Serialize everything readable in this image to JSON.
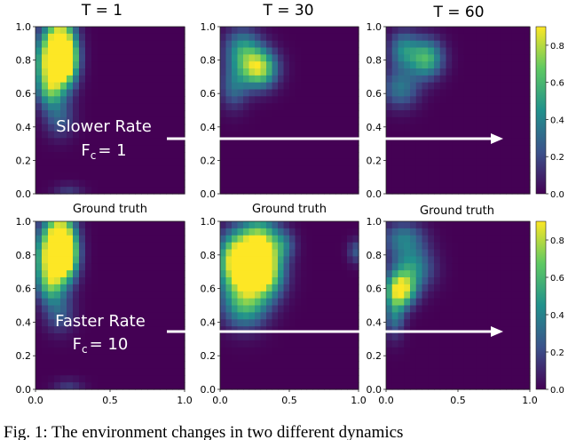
{
  "chart_data": {
    "type": "heatmap",
    "column_titles": [
      "T = 1",
      "T = 30",
      "T = 60"
    ],
    "row_subtitle": "Ground truth",
    "x_ticks": [
      "0.0",
      "0.5",
      "1.0"
    ],
    "y_ticks": [
      "0.0",
      "0.2",
      "0.4",
      "0.6",
      "0.8",
      "1.0"
    ],
    "xlim": [
      0,
      1
    ],
    "ylim": [
      0,
      1
    ],
    "colorbar_ticks": [
      "0.0",
      "0.2",
      "0.4",
      "0.6",
      "0.8"
    ],
    "colorbar_range": [
      0,
      0.9
    ],
    "colormap": [
      "#440154",
      "#3b528b",
      "#21918c",
      "#5ec962",
      "#fde725"
    ],
    "background_color": "#440154",
    "rows": [
      {
        "name": "slow",
        "rate_label": "Slower Rate",
        "fc_symbol": "F",
        "fc_subscript": "c",
        "fc_value": "= 1",
        "panels": [
          {
            "blobs": [
              {
                "x": 0.16,
                "y": 0.88,
                "w": 0.07,
                "h": 0.14,
                "v": 0.9
              },
              {
                "x": 0.1,
                "y": 0.78,
                "w": 0.09,
                "h": 0.12,
                "v": 0.6
              },
              {
                "x": 0.22,
                "y": 0.8,
                "w": 0.05,
                "h": 0.1,
                "v": 0.5
              },
              {
                "x": 0.1,
                "y": 0.62,
                "w": 0.06,
                "h": 0.08,
                "v": 0.4
              },
              {
                "x": 0.16,
                "y": 0.45,
                "w": 0.07,
                "h": 0.08,
                "v": 0.25
              },
              {
                "x": 0.22,
                "y": 0.02,
                "w": 0.07,
                "h": 0.03,
                "v": 0.15
              }
            ]
          },
          {
            "blobs": [
              {
                "x": 0.28,
                "y": 0.75,
                "w": 0.09,
                "h": 0.08,
                "v": 0.8
              },
              {
                "x": 0.16,
                "y": 0.86,
                "w": 0.09,
                "h": 0.09,
                "v": 0.45
              },
              {
                "x": 0.1,
                "y": 0.64,
                "w": 0.07,
                "h": 0.09,
                "v": 0.3
              }
            ]
          },
          {
            "blobs": [
              {
                "x": 0.28,
                "y": 0.81,
                "w": 0.08,
                "h": 0.08,
                "v": 0.6
              },
              {
                "x": 0.12,
                "y": 0.86,
                "w": 0.07,
                "h": 0.08,
                "v": 0.4
              },
              {
                "x": 0.1,
                "y": 0.63,
                "w": 0.09,
                "h": 0.08,
                "v": 0.35
              }
            ]
          }
        ]
      },
      {
        "name": "fast",
        "rate_label": "Faster Rate",
        "fc_symbol": "F",
        "fc_subscript": "c",
        "fc_value": "= 10",
        "panels": [
          {
            "blobs": [
              {
                "x": 0.16,
                "y": 0.88,
                "w": 0.07,
                "h": 0.14,
                "v": 0.9
              },
              {
                "x": 0.1,
                "y": 0.78,
                "w": 0.09,
                "h": 0.12,
                "v": 0.6
              },
              {
                "x": 0.22,
                "y": 0.8,
                "w": 0.05,
                "h": 0.1,
                "v": 0.5
              },
              {
                "x": 0.1,
                "y": 0.62,
                "w": 0.06,
                "h": 0.08,
                "v": 0.4
              },
              {
                "x": 0.16,
                "y": 0.45,
                "w": 0.07,
                "h": 0.08,
                "v": 0.25
              },
              {
                "x": 0.22,
                "y": 0.02,
                "w": 0.07,
                "h": 0.03,
                "v": 0.15
              }
            ]
          },
          {
            "blobs": [
              {
                "x": 0.28,
                "y": 0.85,
                "w": 0.1,
                "h": 0.12,
                "v": 0.85
              },
              {
                "x": 0.18,
                "y": 0.68,
                "w": 0.12,
                "h": 0.12,
                "v": 0.8
              },
              {
                "x": 0.34,
                "y": 0.68,
                "w": 0.09,
                "h": 0.1,
                "v": 0.5
              },
              {
                "x": 0.1,
                "y": 0.8,
                "w": 0.08,
                "h": 0.1,
                "v": 0.5
              },
              {
                "x": 0.18,
                "y": 0.48,
                "w": 0.11,
                "h": 0.09,
                "v": 0.4
              },
              {
                "x": 0.46,
                "y": 0.86,
                "w": 0.06,
                "h": 0.06,
                "v": 0.25
              },
              {
                "x": 0.98,
                "y": 0.82,
                "w": 0.04,
                "h": 0.05,
                "v": 0.25
              }
            ]
          },
          {
            "blobs": [
              {
                "x": 0.1,
                "y": 0.59,
                "w": 0.07,
                "h": 0.07,
                "v": 0.85
              },
              {
                "x": 0.18,
                "y": 0.72,
                "w": 0.1,
                "h": 0.09,
                "v": 0.45
              },
              {
                "x": 0.06,
                "y": 0.44,
                "w": 0.05,
                "h": 0.09,
                "v": 0.35
              },
              {
                "x": 0.12,
                "y": 0.9,
                "w": 0.1,
                "h": 0.07,
                "v": 0.35
              }
            ]
          }
        ]
      }
    ]
  },
  "caption": "Fig. 1: The environment changes in two different dynamics"
}
